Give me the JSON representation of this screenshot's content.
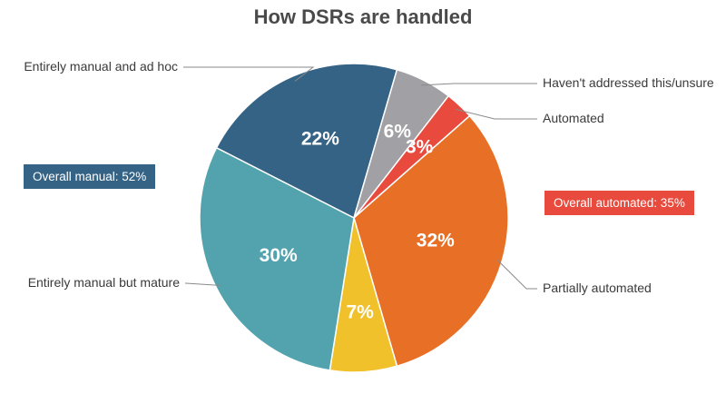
{
  "chart_data": {
    "type": "pie",
    "title": "How DSRs are handled",
    "slices": [
      {
        "label": "Entirely manual and ad hoc",
        "value": 22,
        "display": "22%",
        "color": "#356385"
      },
      {
        "label": "Haven't addressed this/unsure",
        "value": 6,
        "display": "6%",
        "color": "#a0a0a5"
      },
      {
        "label": "Automated",
        "value": 3,
        "display": "3%",
        "color": "#e84a3d"
      },
      {
        "label": "Partially automated",
        "value": 32,
        "display": "32%",
        "color": "#e86f26"
      },
      {
        "label": "",
        "value": 7,
        "display": "7%",
        "color": "#f0c12b"
      },
      {
        "label": "Entirely manual but mature",
        "value": 30,
        "display": "30%",
        "color": "#52a3ad"
      }
    ],
    "annotations": [
      {
        "text": "Overall manual: 52%",
        "color": "#356385"
      },
      {
        "text": "Overall automated: 35%",
        "color": "#e84a3d"
      }
    ]
  }
}
